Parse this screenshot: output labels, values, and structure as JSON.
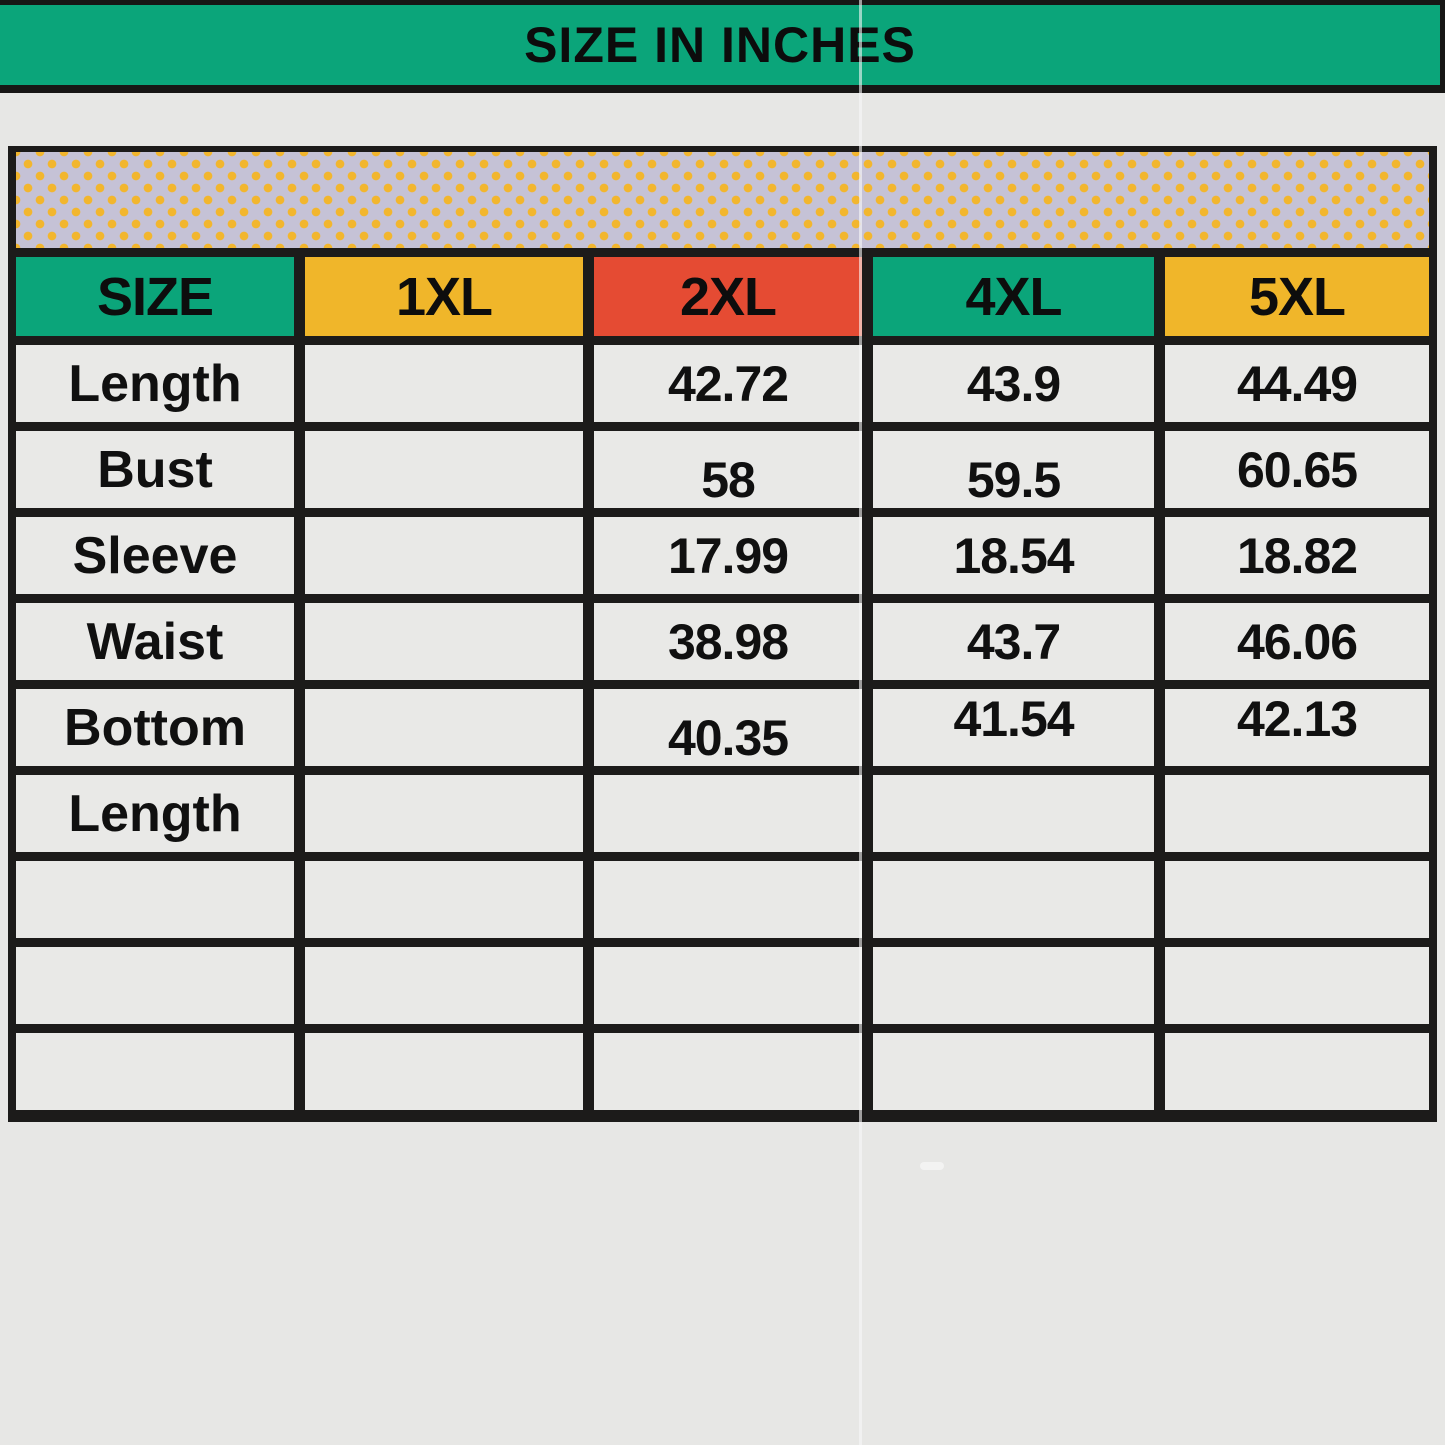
{
  "banner": {
    "title": "SIZE IN INCHES",
    "bg_color": "#0ba57a"
  },
  "table": {
    "header": [
      {
        "label": "SIZE",
        "bg": "#0ba57a"
      },
      {
        "label": "1XL",
        "bg": "#f0b62a"
      },
      {
        "label": "2XL",
        "bg": "#e54b33"
      },
      {
        "label": "4XL",
        "bg": "#0ba57a"
      },
      {
        "label": "5XL",
        "bg": "#f0b62a"
      }
    ],
    "rows": [
      {
        "label": "Length",
        "values": [
          "",
          "42.72",
          "43.9",
          "44.49"
        ]
      },
      {
        "label": "Bust",
        "values": [
          "",
          "58",
          "59.5",
          "60.65"
        ]
      },
      {
        "label": "Sleeve",
        "values": [
          "",
          "17.99",
          "18.54",
          "18.82"
        ]
      },
      {
        "label": "Waist",
        "values": [
          "",
          "38.98",
          "43.7",
          "46.06"
        ]
      },
      {
        "label": "Bottom",
        "values": [
          "",
          "40.35",
          "41.54",
          "42.13"
        ]
      },
      {
        "label": "Length",
        "values": [
          "",
          "",
          "",
          ""
        ]
      },
      {
        "label": "",
        "values": [
          "",
          "",
          "",
          ""
        ]
      },
      {
        "label": "",
        "values": [
          "",
          "",
          "",
          ""
        ]
      },
      {
        "label": "",
        "values": [
          "",
          "",
          "",
          ""
        ]
      }
    ],
    "cell_bg": "#e9e9e7",
    "grid_color": "#1c1b1a",
    "dotted_strip": {
      "bg": "#c5c2d6",
      "dot_color": "#f2b62e"
    }
  },
  "chart_data": {
    "type": "table",
    "title": "SIZE IN INCHES",
    "columns": [
      "SIZE",
      "1XL",
      "2XL",
      "4XL",
      "5XL"
    ],
    "rows": [
      [
        "Length",
        "",
        "42.72",
        "43.9",
        "44.49"
      ],
      [
        "Bust",
        "",
        "58",
        "59.5",
        "60.65"
      ],
      [
        "Sleeve",
        "",
        "17.99",
        "18.54",
        "18.82"
      ],
      [
        "Waist",
        "",
        "38.98",
        "43.7",
        "46.06"
      ],
      [
        "Bottom",
        "",
        "40.35",
        "41.54",
        "42.13"
      ],
      [
        "Length",
        "",
        "",
        "",
        ""
      ],
      [
        "",
        "",
        "",
        "",
        ""
      ],
      [
        "",
        "",
        "",
        "",
        ""
      ],
      [
        "",
        "",
        "",
        "",
        ""
      ]
    ]
  }
}
